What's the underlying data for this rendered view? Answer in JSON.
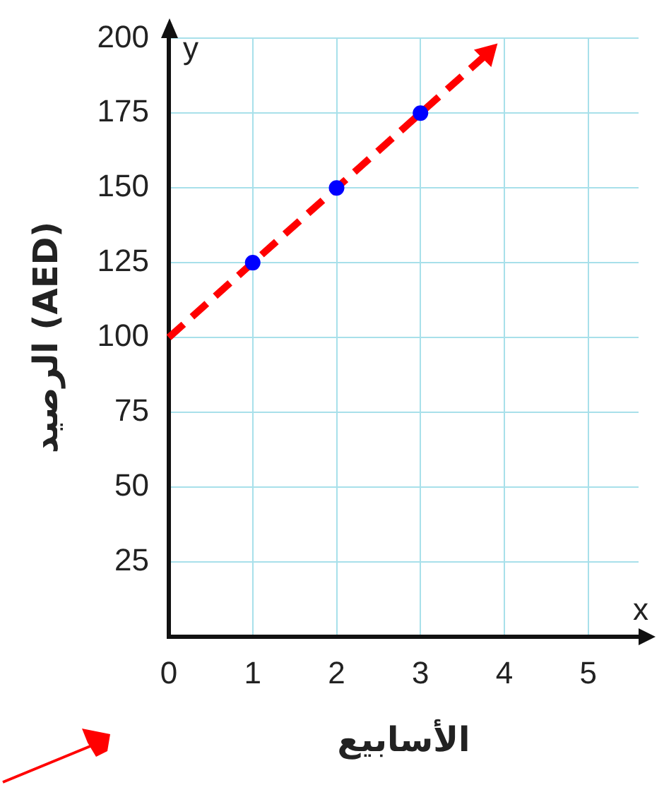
{
  "chart_data": {
    "type": "scatter",
    "xlabel": "الأسابيع",
    "ylabel": "الرصيد (AED)",
    "annotations": [
      "y",
      "x"
    ],
    "series": [
      {
        "type": "scatter",
        "color": "#0000ff",
        "x": [
          1,
          2,
          3
        ],
        "values": [
          125,
          150,
          175
        ],
        "marker": "circle"
      },
      {
        "type": "line",
        "color": "#ff0000",
        "x": [
          0,
          3.8
        ],
        "values": [
          100,
          195
        ],
        "line_style": "dashed"
      }
    ],
    "xlim": [
      0,
      5.6
    ],
    "xticks": [
      0,
      1,
      2,
      3,
      4,
      5
    ],
    "ylim": [
      0,
      200
    ],
    "yticks": [
      {
        "value": 0,
        "label": null
      },
      25,
      50,
      75,
      100,
      125,
      150,
      175,
      200
    ],
    "grid": true,
    "legend": false
  }
}
